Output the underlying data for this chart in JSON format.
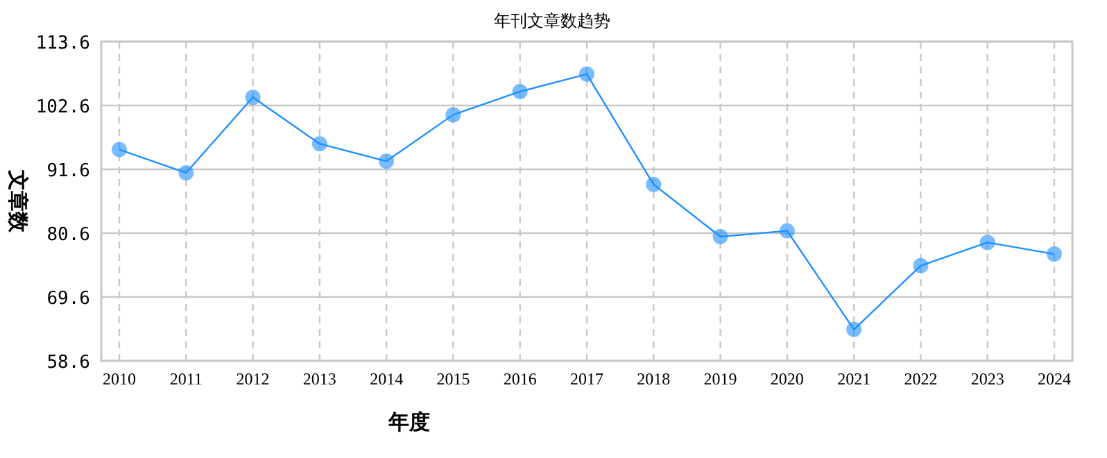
{
  "chart_data": {
    "type": "line",
    "title": "年刊文章数趋势",
    "xlabel": "年度",
    "ylabel": "文章数",
    "categories": [
      "2010",
      "2011",
      "2012",
      "2013",
      "2014",
      "2015",
      "2016",
      "2017",
      "2018",
      "2019",
      "2020",
      "2021",
      "2022",
      "2023",
      "2024"
    ],
    "series": [
      {
        "color": "#1e90ff",
        "values": [
          95,
          91,
          104,
          96,
          93,
          101,
          105,
          108,
          89,
          80,
          81,
          64,
          75,
          79,
          77
        ]
      }
    ],
    "ylim": [
      58.6,
      113.6
    ],
    "yticks": [
      58.6,
      69.6,
      80.6,
      91.6,
      102.6,
      113.6
    ],
    "grid": true,
    "marker": "circle",
    "line_style": "solid"
  }
}
